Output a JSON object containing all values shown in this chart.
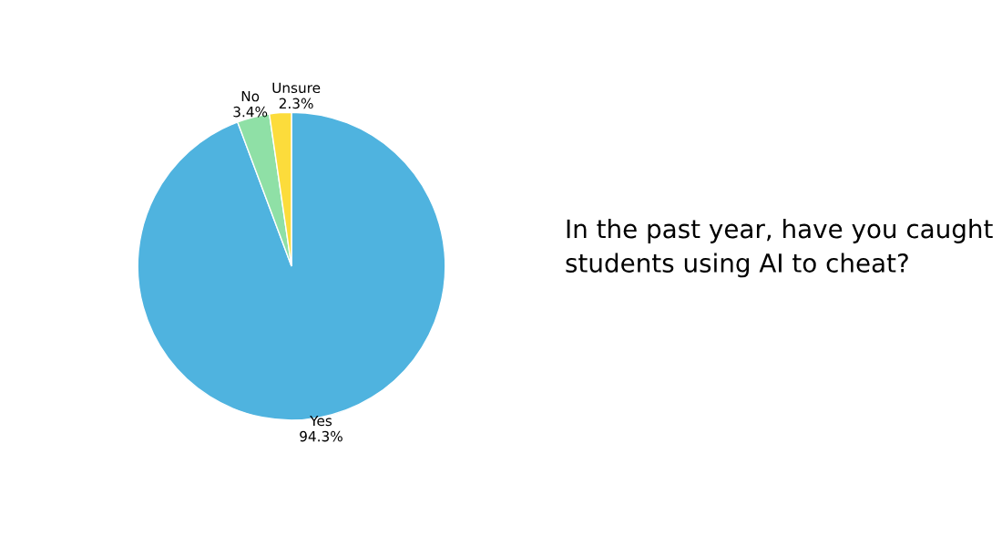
{
  "chart_data": {
    "type": "pie",
    "title": "In the past year, have you caught students using AI to cheat?",
    "categories": [
      "Yes",
      "No",
      "Unsure"
    ],
    "values": [
      94.3,
      3.4,
      2.3
    ],
    "value_labels": [
      "94.3%",
      "3.4%",
      "2.3%"
    ],
    "colors": [
      "#4fb3df",
      "#8fe0a6",
      "#fcdc3b"
    ]
  }
}
